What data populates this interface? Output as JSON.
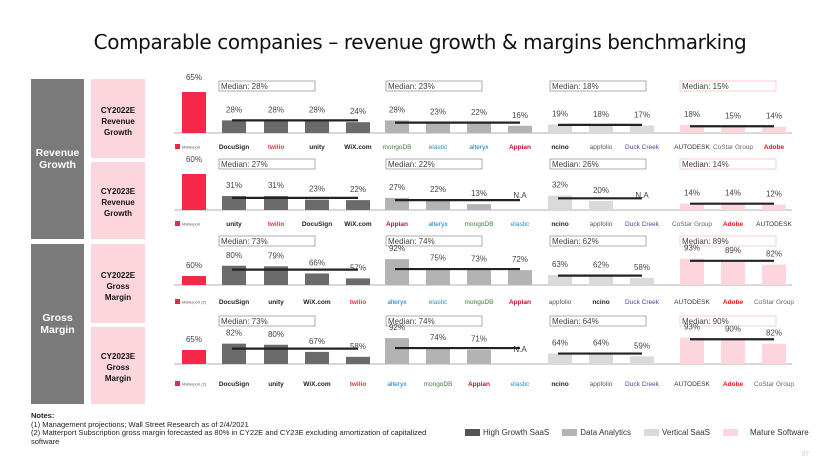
{
  "title": "Comparable companies – revenue growth & margins benchmarking",
  "sections": [
    {
      "label": "Revenue Growth"
    },
    {
      "label": "Gross Margin"
    }
  ],
  "colors": {
    "matterport": "#f5284a",
    "High Growth SaaS": "#6b6b6b",
    "Data Analytics": "#b3b3b3",
    "Vertical SaaS": "#dadada",
    "Mature Software": "#fdd6dd"
  },
  "chart_data": [
    {
      "type": "bar",
      "row_label": [
        "CY2022E",
        "Revenue",
        "Growth"
      ],
      "section": "Revenue Growth",
      "matterport": {
        "name": "Matterport",
        "value": 65,
        "label": "65%"
      },
      "groups": [
        {
          "category": "High Growth SaaS",
          "median": "Median: 28%",
          "median_value": 28,
          "companies": [
            "DocuSign",
            "twilio",
            "unity",
            "WiX.com"
          ],
          "values": [
            28,
            28,
            28,
            24
          ],
          "labels": [
            "28%",
            "28%",
            "28%",
            "24%"
          ]
        },
        {
          "category": "Data Analytics",
          "median": "Median: 23%",
          "median_value": 23,
          "companies": [
            "mongoDB",
            "elastic",
            "alteryx",
            "Appian"
          ],
          "values": [
            28,
            23,
            22,
            16
          ],
          "labels": [
            "28%",
            "23%",
            "22%",
            "16%"
          ]
        },
        {
          "category": "Vertical SaaS",
          "median": "Median: 18%",
          "median_value": 18,
          "companies": [
            "ncino",
            "appfolio",
            "Duck Creek"
          ],
          "values": [
            19,
            18,
            17
          ],
          "labels": [
            "19%",
            "18%",
            "17%"
          ]
        },
        {
          "category": "Mature Software",
          "median": "Median: 15%",
          "median_value": 15,
          "companies": [
            "AUTODESK",
            "CoStar Group",
            "Adobe"
          ],
          "values": [
            18,
            15,
            14
          ],
          "labels": [
            "18%",
            "15%",
            "14%"
          ]
        }
      ]
    },
    {
      "type": "bar",
      "row_label": [
        "CY2023E",
        "Revenue",
        "Growth"
      ],
      "section": "Revenue Growth",
      "matterport": {
        "name": "Matterport",
        "value": 60,
        "label": "60%"
      },
      "groups": [
        {
          "category": "High Growth SaaS",
          "median": "Median: 27%",
          "median_value": 27,
          "companies": [
            "unity",
            "twilio",
            "DocuSign",
            "WiX.com"
          ],
          "values": [
            31,
            31,
            23,
            22
          ],
          "labels": [
            "31%",
            "31%",
            "23%",
            "22%"
          ]
        },
        {
          "category": "Data Analytics",
          "median": "Median: 22%",
          "median_value": 22,
          "companies": [
            "Appian",
            "alteryx",
            "mongoDB",
            "elastic"
          ],
          "values": [
            27,
            22,
            13,
            null
          ],
          "labels": [
            "27%",
            "22%",
            "13%",
            "N.A"
          ]
        },
        {
          "category": "Vertical SaaS",
          "median": "Median: 26%",
          "median_value": 26,
          "companies": [
            "ncino",
            "appfolio",
            "Duck Creek"
          ],
          "values": [
            32,
            20,
            null
          ],
          "labels": [
            "32%",
            "20%",
            "N.A"
          ]
        },
        {
          "category": "Mature Software",
          "median": "Median: 14%",
          "median_value": 14,
          "companies": [
            "CoStar Group",
            "Adobe",
            "AUTODESK"
          ],
          "values": [
            14,
            14,
            12
          ],
          "labels": [
            "14%",
            "14%",
            "12%"
          ]
        }
      ]
    },
    {
      "type": "bar",
      "row_label": [
        "CY2022E",
        "Gross",
        "Margin"
      ],
      "section": "Gross Margin",
      "matterport": {
        "name": "Matterport (2)",
        "value": 60,
        "label": "60%"
      },
      "groups": [
        {
          "category": "High Growth SaaS",
          "median": "Median: 73%",
          "median_value": 73,
          "companies": [
            "DocuSign",
            "unity",
            "WiX.com",
            "twilio"
          ],
          "values": [
            80,
            79,
            66,
            57
          ],
          "labels": [
            "80%",
            "79%",
            "66%",
            "57%"
          ]
        },
        {
          "category": "Data Analytics",
          "median": "Median: 74%",
          "median_value": 74,
          "companies": [
            "alteryx",
            "elastic",
            "mongoDB",
            "Appian"
          ],
          "values": [
            92,
            75,
            73,
            72
          ],
          "labels": [
            "92%",
            "75%",
            "73%",
            "72%"
          ]
        },
        {
          "category": "Vertical SaaS",
          "median": "Median: 62%",
          "median_value": 62,
          "companies": [
            "appfolio",
            "ncino",
            "Duck Creek"
          ],
          "values": [
            63,
            62,
            58
          ],
          "labels": [
            "63%",
            "62%",
            "58%"
          ]
        },
        {
          "category": "Mature Software",
          "median": "Median: 89%",
          "median_value": 89,
          "companies": [
            "AUTODESK",
            "Adobe",
            "CoStar Group"
          ],
          "values": [
            93,
            89,
            82
          ],
          "labels": [
            "93%",
            "89%",
            "82%"
          ]
        }
      ]
    },
    {
      "type": "bar",
      "row_label": [
        "CY2023E",
        "Gross",
        "Margin"
      ],
      "section": "Gross Margin",
      "matterport": {
        "name": "Matterport (2)",
        "value": 65,
        "label": "65%"
      },
      "groups": [
        {
          "category": "High Growth SaaS",
          "median": "Median: 73%",
          "median_value": 73,
          "companies": [
            "DocuSign",
            "unity",
            "WiX.com",
            "twilio"
          ],
          "values": [
            82,
            80,
            67,
            58
          ],
          "labels": [
            "82%",
            "80%",
            "67%",
            "58%"
          ]
        },
        {
          "category": "Data Analytics",
          "median": "Median: 74%",
          "median_value": 74,
          "companies": [
            "alteryx",
            "mongoDB",
            "Appian",
            "elastic"
          ],
          "values": [
            92,
            74,
            71,
            null
          ],
          "labels": [
            "92%",
            "74%",
            "71%",
            "N.A"
          ]
        },
        {
          "category": "Vertical SaaS",
          "median": "Median: 64%",
          "median_value": 64,
          "companies": [
            "ncino",
            "appfolio",
            "Duck Creek"
          ],
          "values": [
            64,
            64,
            59
          ],
          "labels": [
            "64%",
            "64%",
            "59%"
          ]
        },
        {
          "category": "Mature Software",
          "median": "Median: 90%",
          "median_value": 90,
          "companies": [
            "AUTODESK",
            "Adobe",
            "CoStar Group"
          ],
          "values": [
            93,
            90,
            82
          ],
          "labels": [
            "93%",
            "90%",
            "82%"
          ]
        }
      ]
    }
  ],
  "notes": {
    "heading": "Notes:",
    "lines": [
      "(1) Management projections; Wall Street Research as of 2/4/2021",
      "(2) Matterport Subscription gross margin forecasted as 80% in CY22E and CY23E excluding amortization of capitalized software"
    ]
  },
  "legend": [
    {
      "label": "High Growth SaaS",
      "color": "#555555"
    },
    {
      "label": "Data Analytics",
      "color": "#b3b3b3"
    },
    {
      "label": "Vertical SaaS",
      "color": "#dadada"
    },
    {
      "label": "Mature Software",
      "color": "#fdd6dd"
    }
  ],
  "page_number": "37"
}
